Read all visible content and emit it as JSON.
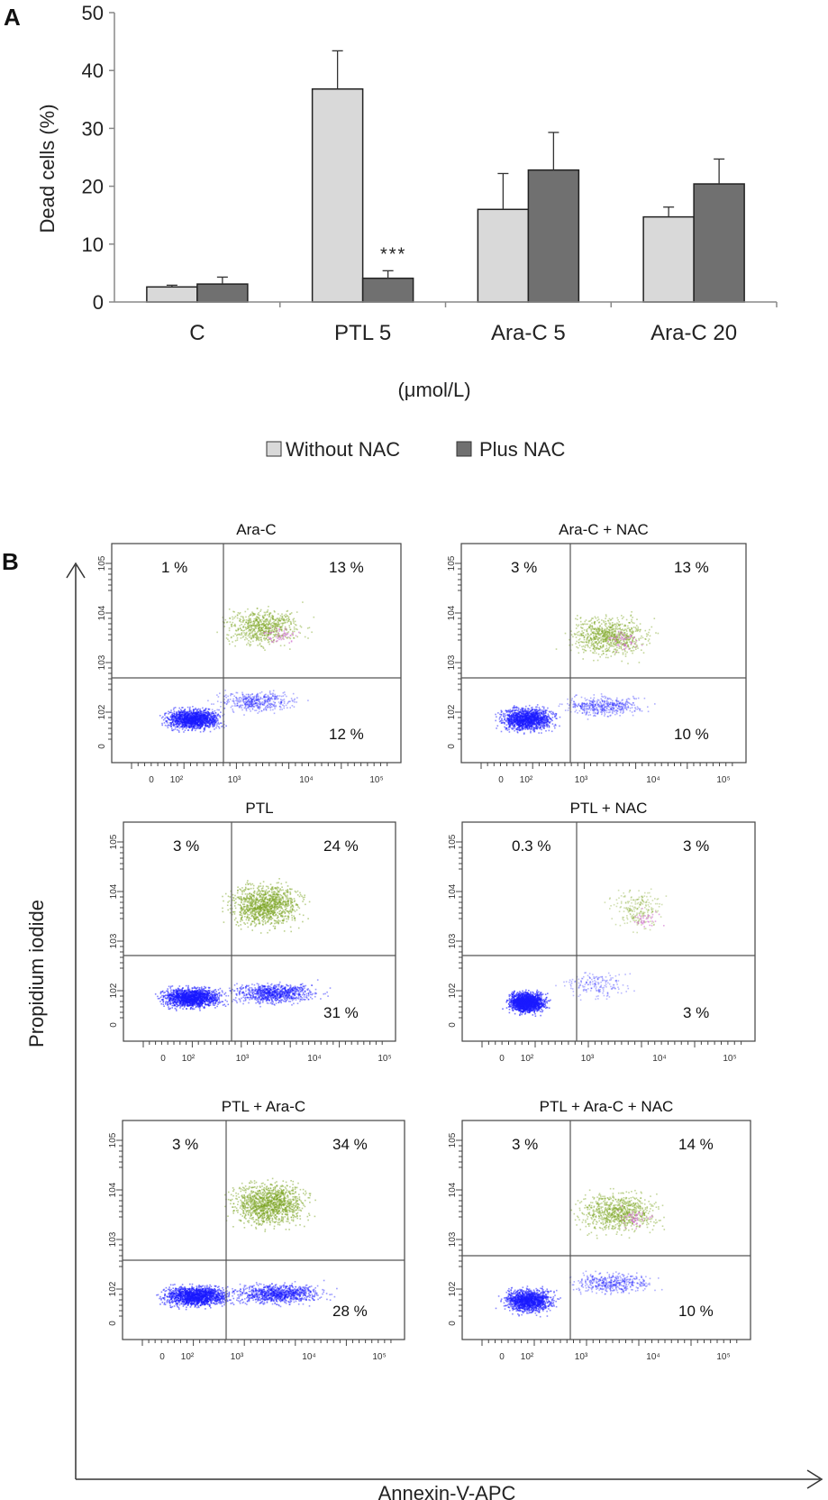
{
  "panel_a": {
    "letter": "A",
    "y_axis_label": "Dead cells (%)",
    "x_axis_label": "(μmol/L)",
    "significance_mark": "***",
    "legend": [
      "Without NAC",
      "Plus NAC"
    ]
  },
  "panel_b": {
    "letter": "B",
    "y_axis_label": "Propidium iodide",
    "x_axis_label": "Annexin-V-APC",
    "plots": [
      {
        "title": "Ara-C",
        "upper_left": "1 %",
        "upper_right": "13 %",
        "lower_right": "12 %"
      },
      {
        "title": "Ara-C + NAC",
        "upper_left": "3 %",
        "upper_right": "13 %",
        "lower_right": "10 %"
      },
      {
        "title": "PTL",
        "upper_left": "3 %",
        "upper_right": "24 %",
        "lower_right": "31 %"
      },
      {
        "title": "PTL + NAC",
        "upper_left": "0.3 %",
        "upper_right": "3 %",
        "lower_right": "3 %"
      },
      {
        "title": "PTL  + Ara-C",
        "upper_left": "3 %",
        "upper_right": "34 %",
        "lower_right": "28 %"
      },
      {
        "title": "PTL + Ara-C + NAC",
        "upper_left": "3 %",
        "upper_right": "14 %",
        "lower_right": "10 %"
      }
    ],
    "tick_labels": {
      "y": [
        "5",
        "4",
        "3",
        "2",
        "0"
      ],
      "x": [
        "0",
        "10²",
        "10³",
        "10⁴",
        "10⁵"
      ],
      "y_prefix": "10"
    }
  },
  "colors": {
    "without_nac": "#d9d9d9",
    "plus_nac": "#707070",
    "live_cells": "#1a1aff",
    "dead_cells": "#7aa320",
    "magenta_cells": "#d070d0"
  },
  "chart_data": [
    {
      "type": "bar",
      "title": "",
      "xlabel": "(μmol/L)",
      "ylabel": "Dead cells (%)",
      "ylim": [
        0,
        50
      ],
      "yticks": [
        0,
        10,
        20,
        30,
        40,
        50
      ],
      "categories": [
        "C",
        "PTL 5",
        "Ara-C 5",
        "Ara-C 20"
      ],
      "series": [
        {
          "name": "Without NAC",
          "values": [
            2.6,
            36.8,
            16.0,
            14.7
          ],
          "errors": [
            0.3,
            6.6,
            6.2,
            1.7
          ]
        },
        {
          "name": "Plus NAC",
          "values": [
            3.1,
            4.1,
            22.8,
            20.4
          ],
          "errors": [
            1.2,
            1.3,
            6.5,
            4.3
          ]
        }
      ],
      "annotations": [
        {
          "category": "PTL 5",
          "series": "Plus NAC",
          "text": "***"
        }
      ],
      "legend_position": "bottom"
    }
  ]
}
